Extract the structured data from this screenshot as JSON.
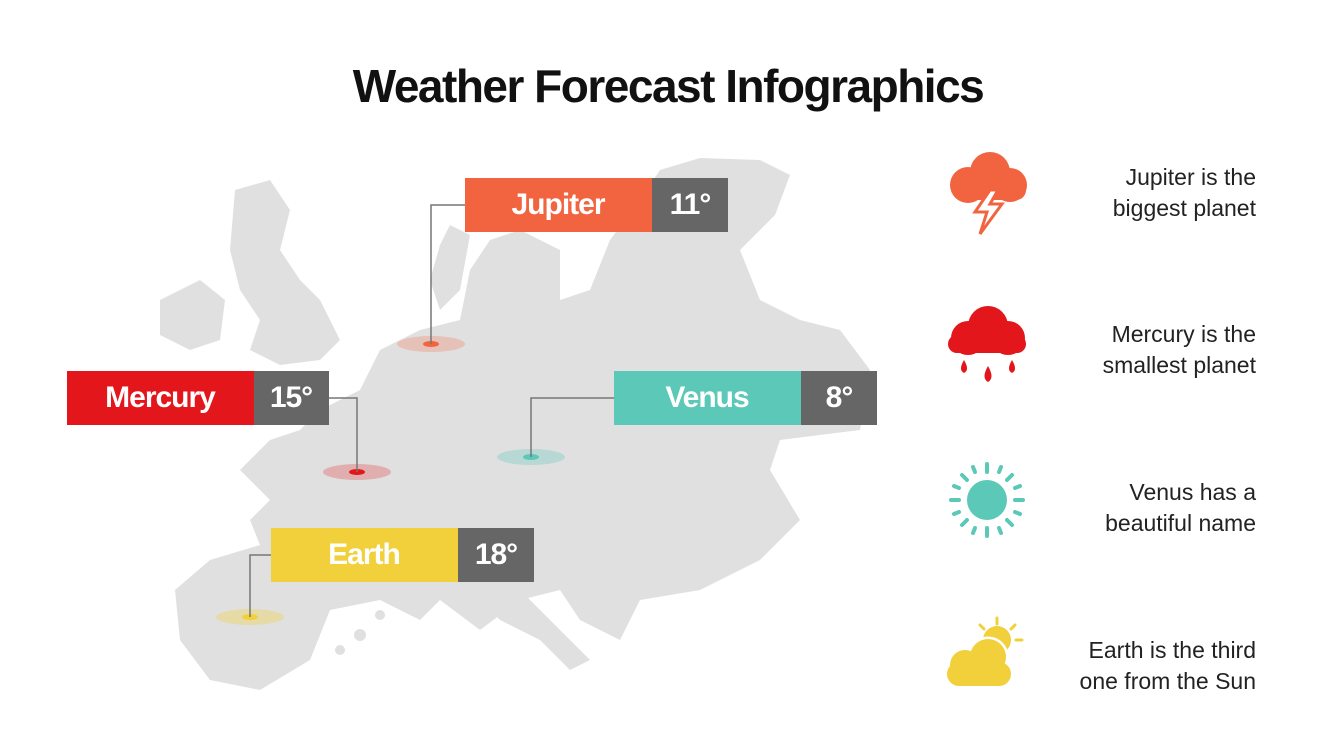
{
  "title": "Weather Forecast Infographics",
  "labels": [
    {
      "name": "Jupiter",
      "temp": "11°"
    },
    {
      "name": "Mercury",
      "temp": "15°"
    },
    {
      "name": "Venus",
      "temp": "8°"
    },
    {
      "name": "Earth",
      "temp": "18°"
    }
  ],
  "descriptions": [
    [
      "Jupiter is the",
      "biggest planet"
    ],
    [
      "Mercury is the",
      "smallest planet"
    ],
    [
      "Venus has a",
      "beautiful name"
    ],
    [
      "Earth is the third",
      "one from the Sun"
    ]
  ]
}
